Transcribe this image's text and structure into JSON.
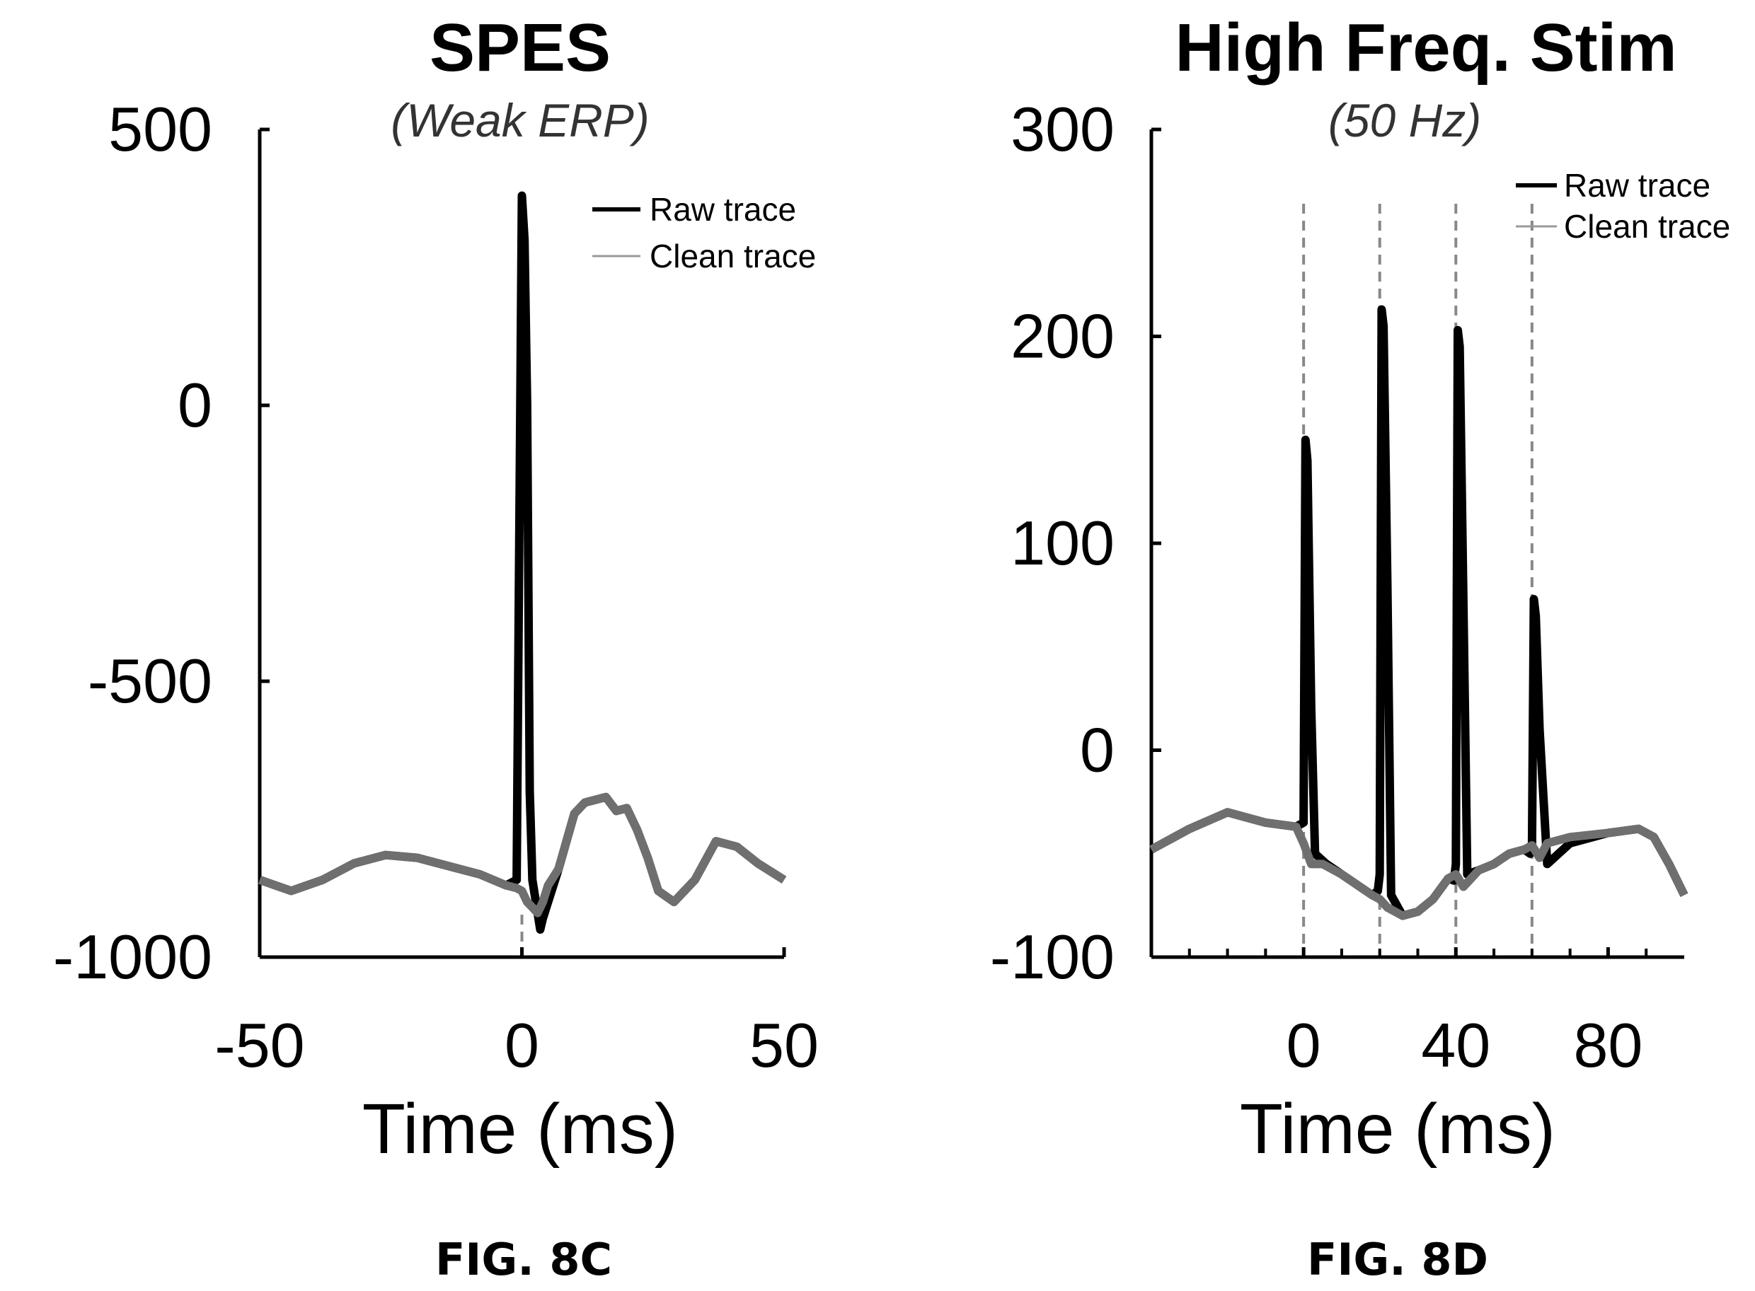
{
  "chart_data": [
    {
      "type": "line",
      "figure_label": "FIG. 8C",
      "title": "SPES",
      "subtitle": "(Weak ERP)",
      "xlabel": "Time (ms)",
      "ylabel": "",
      "xlim": [
        -50,
        50
      ],
      "ylim": [
        -1000,
        500
      ],
      "xticks": [
        -50,
        0,
        50
      ],
      "xtick_labels": [
        "-50",
        "0",
        "50"
      ],
      "yticks": [
        -1000,
        -500,
        0,
        500
      ],
      "ytick_labels": [
        "-1000",
        "-500",
        "0",
        "500"
      ],
      "legend_position": "top-right",
      "stim_lines": [
        0
      ],
      "series": [
        {
          "name": "Raw trace",
          "color": "#000000",
          "x": [
            -50,
            -44,
            -38,
            -32,
            -26,
            -20,
            -14,
            -8,
            -3,
            -1,
            0,
            0.5,
            1,
            1.5,
            2,
            3,
            3.5,
            4,
            5,
            7,
            10,
            12,
            14,
            16,
            18,
            20,
            22,
            24,
            26,
            29,
            33,
            37,
            41,
            45,
            50
          ],
          "y": [
            -860,
            -880,
            -860,
            -830,
            -815,
            -820,
            -835,
            -850,
            -870,
            -860,
            380,
            300,
            0,
            -700,
            -860,
            -920,
            -950,
            -930,
            -900,
            -840,
            -740,
            -720,
            -715,
            -710,
            -735,
            -730,
            -770,
            -820,
            -880,
            -900,
            -860,
            -790,
            -800,
            -830,
            -860
          ]
        },
        {
          "name": "Clean trace",
          "color": "#777777",
          "x": [
            -50,
            -44,
            -38,
            -32,
            -26,
            -20,
            -14,
            -8,
            -3,
            -1,
            0,
            1,
            2,
            3,
            4,
            5,
            7,
            10,
            12,
            14,
            16,
            18,
            20,
            22,
            24,
            26,
            29,
            33,
            37,
            41,
            45,
            50
          ],
          "y": [
            -860,
            -880,
            -860,
            -830,
            -815,
            -820,
            -835,
            -850,
            -870,
            -875,
            -880,
            -900,
            -910,
            -920,
            -900,
            -870,
            -840,
            -740,
            -720,
            -715,
            -710,
            -735,
            -730,
            -770,
            -820,
            -880,
            -900,
            -860,
            -790,
            -800,
            -830,
            -860
          ]
        }
      ]
    },
    {
      "type": "line",
      "figure_label": "FIG. 8D",
      "title": "High Freq. Stim",
      "subtitle": "(50 Hz)",
      "xlabel": "Time (ms)",
      "ylabel": "",
      "xlim": [
        -40,
        100
      ],
      "ylim": [
        -100,
        300
      ],
      "xticks": [
        0,
        40,
        80
      ],
      "xtick_labels": [
        "0",
        "40",
        "80"
      ],
      "minor_xticks": [
        -30,
        -20,
        -10,
        10,
        20,
        30,
        50,
        60,
        70,
        90
      ],
      "yticks": [
        -100,
        0,
        100,
        200,
        300
      ],
      "ytick_labels": [
        "-100",
        "0",
        "100",
        "200",
        "300"
      ],
      "legend_position": "top-right",
      "stim_lines": [
        0,
        20,
        40,
        60
      ],
      "series": [
        {
          "name": "Raw trace",
          "color": "#000000",
          "x": [
            -40,
            -30,
            -20,
            -10,
            -2,
            0,
            0.5,
            1,
            2,
            3,
            6,
            10,
            14,
            18,
            19.5,
            20,
            20.5,
            21,
            22,
            23,
            26,
            30,
            34,
            38,
            39.5,
            40,
            40.5,
            41,
            42,
            43,
            46,
            50,
            54,
            58,
            59.5,
            60,
            60.5,
            61,
            62,
            64,
            70,
            80,
            88,
            92,
            96,
            100
          ],
          "y": [
            -48,
            -38,
            -30,
            -35,
            -37,
            -35,
            150,
            140,
            20,
            -50,
            -55,
            -60,
            -65,
            -70,
            -68,
            -60,
            213,
            205,
            80,
            -70,
            -80,
            -78,
            -72,
            -62,
            -63,
            -55,
            203,
            195,
            70,
            -60,
            -58,
            -55,
            -50,
            -48,
            -50,
            -45,
            73,
            65,
            10,
            -55,
            -45,
            -40,
            -38,
            -42,
            -55,
            -70
          ]
        },
        {
          "name": "Clean trace",
          "color": "#777777",
          "x": [
            -40,
            -30,
            -20,
            -10,
            -2,
            0,
            2,
            5,
            10,
            14,
            18,
            20,
            22,
            26,
            30,
            34,
            38,
            40,
            42,
            46,
            50,
            54,
            58,
            60,
            62,
            64,
            70,
            80,
            88,
            92,
            96,
            100
          ],
          "y": [
            -48,
            -38,
            -30,
            -35,
            -37,
            -45,
            -55,
            -55,
            -60,
            -65,
            -70,
            -72,
            -76,
            -80,
            -78,
            -72,
            -62,
            -60,
            -66,
            -58,
            -55,
            -50,
            -48,
            -46,
            -52,
            -45,
            -42,
            -40,
            -38,
            -42,
            -55,
            -70
          ]
        }
      ]
    }
  ]
}
